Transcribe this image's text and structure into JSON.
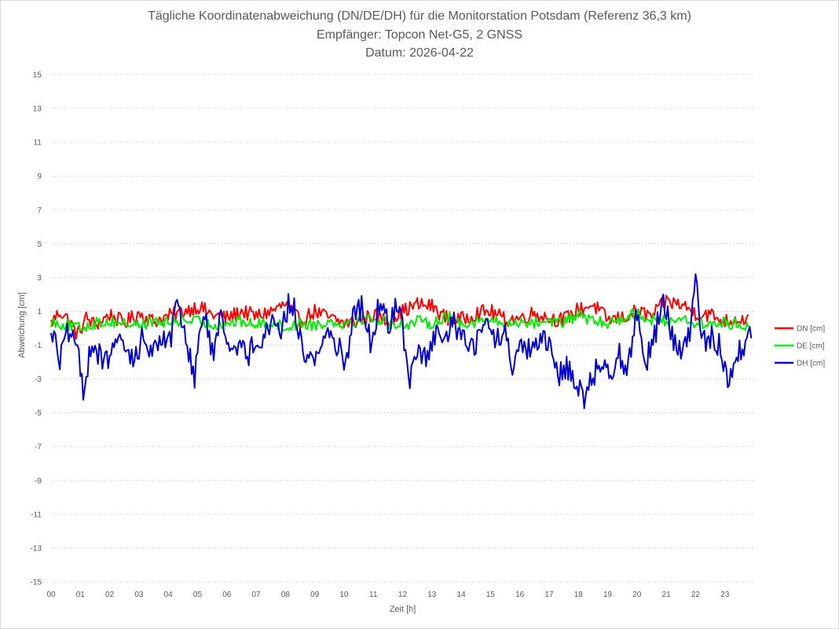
{
  "chart_data": {
    "type": "line",
    "title": "Tägliche Koordinatenabweichung (DN/DE/DH) für die Monitorstation Potsdam (Referenz 36,3 km)",
    "subtitle": "Empfänger: Topcon Net-G5, 2 GNSS",
    "date_line": "Datum: 2026-04-22",
    "xlabel": "Zeit [h]",
    "ylabel": "Abweichung [cm]",
    "ylim": [
      -15,
      15
    ],
    "yticks": [
      "15",
      "13",
      "11",
      "9",
      "7",
      "5",
      "3",
      "1",
      "-1",
      "-3",
      "-5",
      "-7",
      "-9",
      "-11",
      "-13",
      "-15"
    ],
    "xlim": [
      0,
      24
    ],
    "xticks": [
      "00",
      "01",
      "02",
      "03",
      "04",
      "05",
      "06",
      "07",
      "08",
      "09",
      "10",
      "11",
      "12",
      "13",
      "14",
      "15",
      "16",
      "17",
      "18",
      "19",
      "20",
      "21",
      "22",
      "23"
    ],
    "grid": "horizontal dotted",
    "legend_position": "right",
    "sampling_interval_h": 0.05,
    "series": [
      {
        "name": "DN [cm]",
        "color": "#ff0000",
        "keypoints": [
          [
            0.0,
            0.3
          ],
          [
            0.3,
            1.0
          ],
          [
            0.6,
            0.5
          ],
          [
            0.9,
            -0.4
          ],
          [
            1.2,
            0.6
          ],
          [
            1.5,
            0.2
          ],
          [
            2.0,
            0.8
          ],
          [
            2.5,
            0.3
          ],
          [
            3.0,
            0.9
          ],
          [
            3.5,
            0.4
          ],
          [
            4.0,
            0.7
          ],
          [
            4.5,
            1.0
          ],
          [
            5.0,
            1.3
          ],
          [
            5.5,
            0.8
          ],
          [
            6.0,
            0.6
          ],
          [
            6.5,
            1.0
          ],
          [
            7.0,
            0.7
          ],
          [
            7.5,
            1.0
          ],
          [
            8.0,
            1.4
          ],
          [
            8.5,
            0.4
          ],
          [
            9.0,
            1.0
          ],
          [
            9.5,
            0.6
          ],
          [
            10.0,
            0.3
          ],
          [
            10.5,
            0.4
          ],
          [
            11.0,
            0.8
          ],
          [
            11.5,
            0.4
          ],
          [
            12.0,
            1.0
          ],
          [
            12.5,
            1.4
          ],
          [
            13.0,
            1.3
          ],
          [
            13.5,
            0.6
          ],
          [
            14.0,
            0.5
          ],
          [
            14.5,
            0.9
          ],
          [
            15.0,
            1.0
          ],
          [
            15.5,
            0.5
          ],
          [
            16.0,
            0.6
          ],
          [
            16.5,
            0.9
          ],
          [
            17.0,
            0.6
          ],
          [
            17.5,
            0.5
          ],
          [
            18.0,
            1.1
          ],
          [
            18.5,
            1.4
          ],
          [
            19.0,
            0.5
          ],
          [
            19.5,
            0.6
          ],
          [
            20.0,
            1.0
          ],
          [
            20.5,
            0.7
          ],
          [
            21.0,
            1.6
          ],
          [
            21.5,
            1.4
          ],
          [
            22.0,
            0.9
          ],
          [
            22.5,
            0.8
          ],
          [
            23.0,
            0.4
          ],
          [
            23.5,
            0.6
          ],
          [
            23.8,
            0.5
          ]
        ]
      },
      {
        "name": "DE [cm]",
        "color": "#00ee00",
        "keypoints": [
          [
            0.0,
            0.4
          ],
          [
            0.5,
            0.2
          ],
          [
            1.0,
            0.0
          ],
          [
            1.5,
            0.3
          ],
          [
            2.0,
            0.4
          ],
          [
            2.5,
            0.3
          ],
          [
            3.0,
            0.2
          ],
          [
            3.5,
            0.4
          ],
          [
            4.0,
            0.3
          ],
          [
            4.5,
            0.5
          ],
          [
            5.0,
            0.4
          ],
          [
            5.5,
            0.2
          ],
          [
            6.0,
            0.3
          ],
          [
            6.5,
            0.4
          ],
          [
            7.0,
            0.2
          ],
          [
            7.5,
            0.4
          ],
          [
            8.0,
            0.0
          ],
          [
            8.5,
            0.3
          ],
          [
            9.0,
            0.2
          ],
          [
            9.5,
            0.4
          ],
          [
            10.0,
            0.3
          ],
          [
            10.5,
            0.5
          ],
          [
            11.0,
            0.6
          ],
          [
            11.5,
            0.3
          ],
          [
            12.0,
            0.2
          ],
          [
            12.5,
            0.4
          ],
          [
            13.0,
            0.3
          ],
          [
            13.5,
            0.7
          ],
          [
            14.0,
            0.3
          ],
          [
            14.5,
            0.4
          ],
          [
            15.0,
            0.5
          ],
          [
            15.5,
            0.2
          ],
          [
            16.0,
            0.4
          ],
          [
            16.5,
            0.3
          ],
          [
            17.0,
            0.5
          ],
          [
            17.5,
            0.3
          ],
          [
            18.0,
            0.8
          ],
          [
            18.5,
            0.4
          ],
          [
            19.0,
            0.3
          ],
          [
            19.5,
            0.6
          ],
          [
            20.0,
            0.9
          ],
          [
            20.5,
            0.5
          ],
          [
            21.0,
            0.4
          ],
          [
            21.5,
            0.6
          ],
          [
            22.0,
            0.3
          ],
          [
            22.5,
            0.2
          ],
          [
            23.0,
            0.3
          ],
          [
            23.8,
            0.2
          ]
        ]
      },
      {
        "name": "DH [cm]",
        "color": "#0000cc",
        "keypoints": [
          [
            0.0,
            0.0
          ],
          [
            0.3,
            -1.8
          ],
          [
            0.6,
            -0.2
          ],
          [
            0.9,
            -1.5
          ],
          [
            1.1,
            -3.5
          ],
          [
            1.4,
            -0.8
          ],
          [
            1.8,
            -2.2
          ],
          [
            2.1,
            -1.2
          ],
          [
            2.5,
            -1.0
          ],
          [
            2.8,
            -2.0
          ],
          [
            3.1,
            -0.6
          ],
          [
            3.5,
            -1.5
          ],
          [
            3.8,
            -0.3
          ],
          [
            4.1,
            -0.6
          ],
          [
            4.3,
            1.8
          ],
          [
            4.6,
            -0.5
          ],
          [
            4.9,
            -2.8
          ],
          [
            5.2,
            1.0
          ],
          [
            5.5,
            -1.5
          ],
          [
            5.8,
            0.5
          ],
          [
            6.1,
            -1.0
          ],
          [
            6.4,
            -0.8
          ],
          [
            6.7,
            -1.8
          ],
          [
            7.0,
            -0.5
          ],
          [
            7.3,
            -0.4
          ],
          [
            7.6,
            0.6
          ],
          [
            7.9,
            -0.1
          ],
          [
            8.1,
            1.4
          ],
          [
            8.3,
            1.2
          ],
          [
            8.6,
            -1.5
          ],
          [
            9.0,
            -1.8
          ],
          [
            9.3,
            -0.6
          ],
          [
            9.6,
            -0.3
          ],
          [
            9.9,
            -1.5
          ],
          [
            10.1,
            -2.0
          ],
          [
            10.3,
            1.0
          ],
          [
            10.6,
            1.2
          ],
          [
            10.9,
            -0.8
          ],
          [
            11.2,
            1.4
          ],
          [
            11.5,
            0.2
          ],
          [
            11.8,
            1.4
          ],
          [
            12.0,
            0.4
          ],
          [
            12.2,
            -3.5
          ],
          [
            12.5,
            -1.0
          ],
          [
            12.8,
            -2.0
          ],
          [
            13.1,
            -0.5
          ],
          [
            13.4,
            -0.9
          ],
          [
            13.7,
            0.5
          ],
          [
            14.0,
            -0.5
          ],
          [
            14.3,
            -1.2
          ],
          [
            14.6,
            -0.6
          ],
          [
            14.9,
            0.3
          ],
          [
            15.2,
            -0.8
          ],
          [
            15.5,
            -0.4
          ],
          [
            15.8,
            -2.5
          ],
          [
            16.1,
            -1.0
          ],
          [
            16.4,
            -1.5
          ],
          [
            16.7,
            -0.6
          ],
          [
            17.0,
            -1.2
          ],
          [
            17.3,
            -2.8
          ],
          [
            17.6,
            -2.2
          ],
          [
            17.9,
            -3.0
          ],
          [
            18.2,
            -4.2
          ],
          [
            18.5,
            -2.8
          ],
          [
            18.8,
            -2.0
          ],
          [
            19.1,
            -2.5
          ],
          [
            19.4,
            -1.5
          ],
          [
            19.7,
            -2.5
          ],
          [
            20.0,
            1.2
          ],
          [
            20.3,
            -2.0
          ],
          [
            20.6,
            -0.5
          ],
          [
            20.9,
            1.8
          ],
          [
            21.2,
            -0.5
          ],
          [
            21.5,
            -1.5
          ],
          [
            21.8,
            -0.4
          ],
          [
            22.0,
            3.2
          ],
          [
            22.2,
            -1.0
          ],
          [
            22.5,
            -0.5
          ],
          [
            22.8,
            -1.0
          ],
          [
            23.1,
            -3.0
          ],
          [
            23.4,
            -1.5
          ],
          [
            23.7,
            -1.2
          ],
          [
            23.9,
            0.0
          ]
        ]
      }
    ]
  }
}
